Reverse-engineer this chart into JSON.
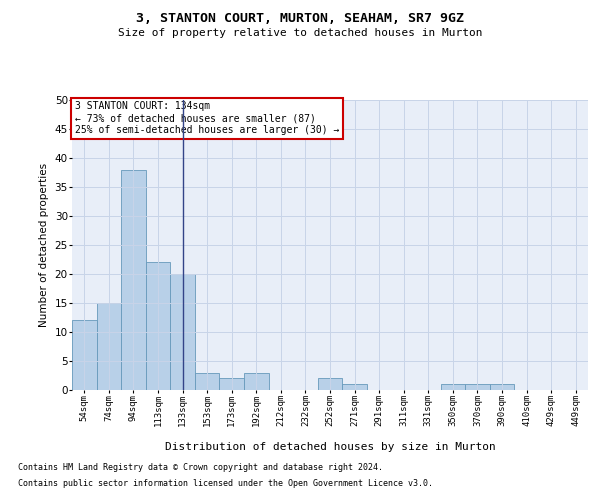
{
  "title": "3, STANTON COURT, MURTON, SEAHAM, SR7 9GZ",
  "subtitle": "Size of property relative to detached houses in Murton",
  "xlabel": "Distribution of detached houses by size in Murton",
  "ylabel": "Number of detached properties",
  "footnote1": "Contains HM Land Registry data © Crown copyright and database right 2024.",
  "footnote2": "Contains public sector information licensed under the Open Government Licence v3.0.",
  "annotation_line1": "3 STANTON COURT: 134sqm",
  "annotation_line2": "← 73% of detached houses are smaller (87)",
  "annotation_line3": "25% of semi-detached houses are larger (30) →",
  "bar_labels": [
    "54sqm",
    "74sqm",
    "94sqm",
    "113sqm",
    "133sqm",
    "153sqm",
    "173sqm",
    "192sqm",
    "212sqm",
    "232sqm",
    "252sqm",
    "271sqm",
    "291sqm",
    "311sqm",
    "331sqm",
    "350sqm",
    "370sqm",
    "390sqm",
    "410sqm",
    "429sqm",
    "449sqm"
  ],
  "bar_heights": [
    12,
    15,
    38,
    22,
    20,
    3,
    2,
    3,
    0,
    0,
    2,
    1,
    0,
    0,
    0,
    1,
    1,
    1,
    0,
    0,
    0
  ],
  "bar_color": "#b8d0e8",
  "bar_edge_color": "#6699bb",
  "property_line_x": 4,
  "ylim": [
    0,
    50
  ],
  "yticks": [
    0,
    5,
    10,
    15,
    20,
    25,
    30,
    35,
    40,
    45,
    50
  ],
  "annotation_box_color": "#cc0000",
  "grid_color": "#c8d4e8",
  "bg_color": "#e8eef8"
}
